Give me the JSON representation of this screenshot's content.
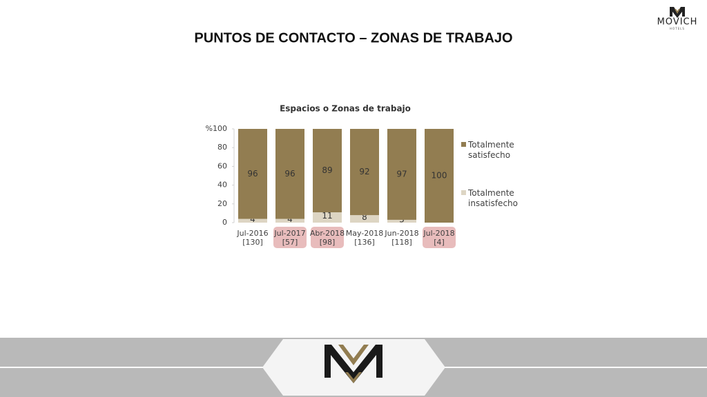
{
  "logo": {
    "name": "MOVICH",
    "tagline": "HOTELS"
  },
  "chart_data": {
    "type": "stacked-bar",
    "page_title": "PUNTOS DE CONTACTO – ZONAS DE TRABAJO",
    "title": "Espacios o Zonas de trabajo",
    "categories": [
      "Jul-2016",
      "Jul-2017",
      "Abr-2018",
      "May-2018",
      "Jun-2018",
      "Jul-2018"
    ],
    "sample_sizes": [
      "[130]",
      "[57]",
      "[98]",
      "[136]",
      "[118]",
      "[4]"
    ],
    "highlighted": [
      false,
      true,
      true,
      false,
      false,
      true
    ],
    "highlight_color": "#e8bcbc",
    "series": [
      {
        "name": "Totalmente satisfecho",
        "color": "#927d51",
        "values": [
          96,
          96,
          89,
          92,
          97,
          100
        ]
      },
      {
        "name": "Totalmente insatisfecho",
        "color": "#ddd5c3",
        "values": [
          4,
          4,
          11,
          8,
          3,
          null
        ]
      }
    ],
    "ylim": [
      0,
      100
    ],
    "yticks": [
      0,
      20,
      40,
      60,
      80,
      {
        "value": 100,
        "label": "%100"
      }
    ],
    "legend": "right"
  }
}
